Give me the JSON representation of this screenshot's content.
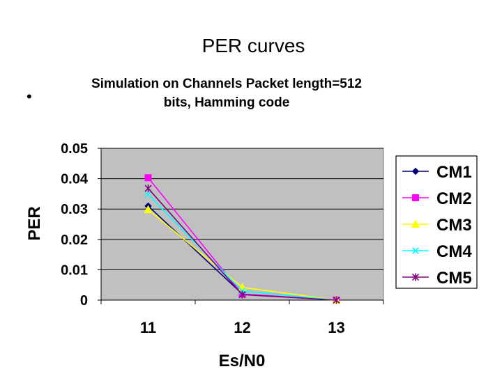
{
  "slide": {
    "title": "PER curves",
    "bullet": "•"
  },
  "chart_data": {
    "type": "line",
    "title": "Simulation on Channels Packet length=512 bits, Hamming code",
    "title_lines": [
      "Simulation on Channels Packet length=512",
      "bits, Hamming code"
    ],
    "xlabel": "Es/N0",
    "ylabel": "PER",
    "categories": [
      "11",
      "12",
      "13"
    ],
    "ylim": [
      0,
      0.05
    ],
    "yticks": [
      0,
      0.01,
      0.02,
      0.03,
      0.04,
      0.05
    ],
    "ytick_labels": [
      "0",
      "0.01",
      "0.02",
      "0.03",
      "0.04",
      "0.05"
    ],
    "grid": true,
    "plot_background": "#c0c0c0",
    "legend_position": "right",
    "series": [
      {
        "name": "CM1",
        "color": "#000080",
        "marker": "diamond",
        "values": [
          0.031,
          0.002,
          0.0
        ]
      },
      {
        "name": "CM2",
        "color": "#ff00ff",
        "marker": "square",
        "values": [
          0.0403,
          0.002,
          0.0
        ]
      },
      {
        "name": "CM3",
        "color": "#ffff00",
        "marker": "triangle",
        "values": [
          0.0298,
          0.0042,
          0.0
        ]
      },
      {
        "name": "CM4",
        "color": "#00ffff",
        "marker": "x",
        "values": [
          0.0348,
          0.003,
          0.0
        ]
      },
      {
        "name": "CM5",
        "color": "#800080",
        "marker": "star",
        "values": [
          0.0368,
          0.0018,
          0.0
        ]
      }
    ]
  }
}
